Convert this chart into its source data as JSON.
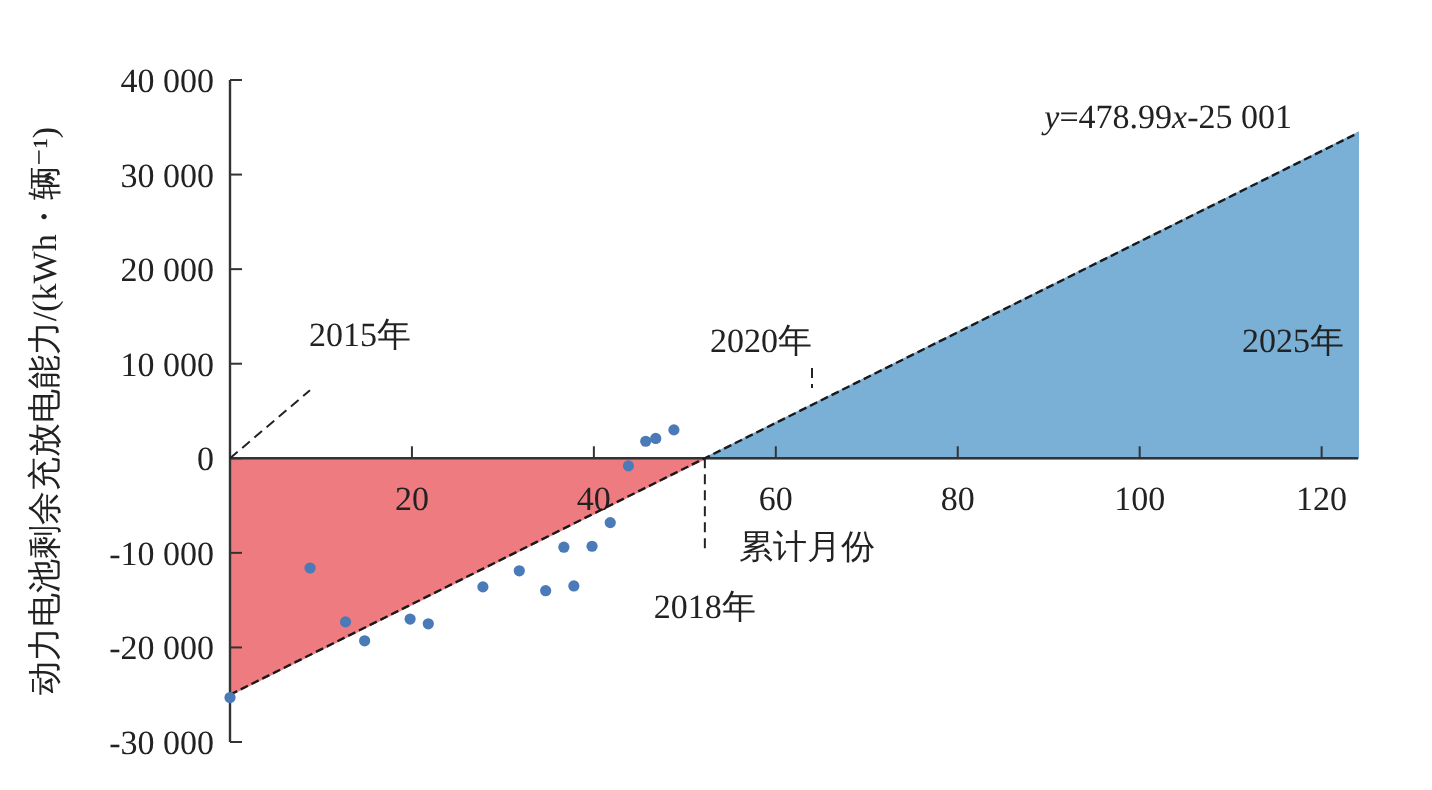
{
  "chart_data": {
    "type": "scatter",
    "ylabel": "动力电池剩余充放电能力/(kWh・辆⁻¹)",
    "xlabel": "累计月份",
    "xlim": [
      0,
      124
    ],
    "xticks": [
      20,
      40,
      60,
      80,
      100,
      120
    ],
    "ylim": [
      -30000,
      40000
    ],
    "yticks": [
      {
        "value": -30000,
        "label": "-30 000"
      },
      {
        "value": -20000,
        "label": "-20 000"
      },
      {
        "value": -10000,
        "label": "-10 000"
      },
      {
        "value": 0,
        "label": "0"
      },
      {
        "value": 10000,
        "label": "10 000"
      },
      {
        "value": 20000,
        "label": "20 000"
      },
      {
        "value": 30000,
        "label": "30 000"
      },
      {
        "value": 40000,
        "label": "40 000"
      }
    ],
    "grid": false,
    "series": [
      {
        "type": "area",
        "color": "#ee7b80",
        "x": [
          0,
          52.2
        ],
        "values": [
          -25000,
          0
        ]
      },
      {
        "type": "area",
        "color": "#7bb0d6",
        "x": [
          52.2,
          124
        ],
        "values": [
          0,
          34400
        ]
      },
      {
        "type": "line",
        "color": "#1a1a1a",
        "line_style": "dashed",
        "x": [
          0,
          124
        ],
        "values": [
          -25000,
          34400
        ]
      },
      {
        "color": "#4a7ab8",
        "marker": "circle",
        "x": [
          0,
          8.8,
          12.7,
          14.8,
          19.8,
          21.8,
          27.8,
          31.8,
          34.7,
          36.7,
          37.8,
          39.8,
          41.8,
          43.8,
          45.7,
          46.8,
          48.8
        ],
        "values": [
          -25300,
          -11600,
          -17300,
          -19300,
          -17000,
          -17500,
          -13600,
          -11900,
          -14000,
          -9400,
          -13500,
          -9300,
          -6800,
          -800,
          1800,
          2100,
          3000
        ]
      }
    ],
    "annotations": [
      {
        "text": "2015年",
        "x": 0,
        "y": 0
      },
      {
        "text": "2018年",
        "x": 52.2,
        "y": 0
      },
      "2020年",
      "2025年",
      "y=478.99x-25 001"
    ]
  }
}
